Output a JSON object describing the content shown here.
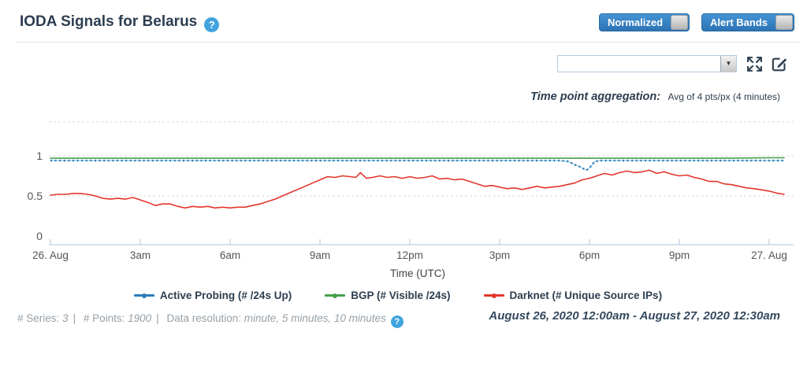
{
  "header": {
    "title": "IODA Signals for Belarus",
    "help_icon": "?",
    "toggles": [
      {
        "label": "Normalized",
        "state": "on"
      },
      {
        "label": "Alert Bands",
        "state": "on"
      }
    ],
    "accent_blue": "#3584c4"
  },
  "controls": {
    "series_dropdown_value": "",
    "aggregation_label": "Time point aggregation:",
    "aggregation_value": "Avg of 4 pts/px (4 minutes)"
  },
  "chart_data": {
    "type": "line",
    "xlabel": "Time (UTC)",
    "x_unit": "hours since 2020-08-26 00:00am UTC",
    "x_range": [
      0,
      24.5
    ],
    "ylim": [
      0,
      1.45
    ],
    "yticks": [
      0,
      0.5,
      1
    ],
    "grid": "horizontal dashed",
    "legend_position": "bottom center",
    "xticks": [
      {
        "hour": 0,
        "label": "26. Aug"
      },
      {
        "hour": 3,
        "label": "3am"
      },
      {
        "hour": 6,
        "label": "6am"
      },
      {
        "hour": 9,
        "label": "9am"
      },
      {
        "hour": 12,
        "label": "12pm"
      },
      {
        "hour": 15,
        "label": "3pm"
      },
      {
        "hour": 18,
        "label": "6pm"
      },
      {
        "hour": 21,
        "label": "9pm"
      },
      {
        "hour": 24,
        "label": "27. Aug"
      }
    ],
    "series": [
      {
        "name": "Active Probing (# /24s Up)",
        "color": "#2e7cb8",
        "style": "dashed-dotted",
        "points": [
          [
            0,
            0.94
          ],
          [
            1,
            0.94
          ],
          [
            2,
            0.94
          ],
          [
            3,
            0.94
          ],
          [
            4,
            0.94
          ],
          [
            5,
            0.94
          ],
          [
            6,
            0.94
          ],
          [
            7,
            0.94
          ],
          [
            8,
            0.94
          ],
          [
            9,
            0.94
          ],
          [
            10,
            0.94
          ],
          [
            11,
            0.94
          ],
          [
            12,
            0.94
          ],
          [
            13,
            0.94
          ],
          [
            14,
            0.94
          ],
          [
            15,
            0.94
          ],
          [
            16,
            0.94
          ],
          [
            17,
            0.94
          ],
          [
            17.3,
            0.93
          ],
          [
            17.5,
            0.89
          ],
          [
            17.7,
            0.86
          ],
          [
            17.9,
            0.82
          ],
          [
            18.05,
            0.87
          ],
          [
            18.15,
            0.92
          ],
          [
            18.3,
            0.94
          ],
          [
            19,
            0.94
          ],
          [
            20,
            0.94
          ],
          [
            21,
            0.94
          ],
          [
            22,
            0.94
          ],
          [
            23,
            0.94
          ],
          [
            24,
            0.94
          ],
          [
            24.5,
            0.94
          ]
        ]
      },
      {
        "name": "BGP (# Visible /24s)",
        "color": "#45a049",
        "style": "solid",
        "points": [
          [
            0,
            0.97
          ],
          [
            2,
            0.97
          ],
          [
            4,
            0.97
          ],
          [
            6,
            0.97
          ],
          [
            8,
            0.97
          ],
          [
            10,
            0.97
          ],
          [
            12,
            0.97
          ],
          [
            14,
            0.97
          ],
          [
            16,
            0.97
          ],
          [
            18,
            0.97
          ],
          [
            20,
            0.97
          ],
          [
            22,
            0.97
          ],
          [
            23,
            0.972
          ],
          [
            24,
            0.975
          ],
          [
            24.5,
            0.975
          ]
        ]
      },
      {
        "name": "Darknet (# Unique Source IPs)",
        "color": "#e3362c",
        "style": "solid",
        "points": [
          [
            0,
            0.51
          ],
          [
            0.25,
            0.52
          ],
          [
            0.5,
            0.52
          ],
          [
            0.75,
            0.53
          ],
          [
            1,
            0.53
          ],
          [
            1.25,
            0.52
          ],
          [
            1.5,
            0.5
          ],
          [
            1.75,
            0.47
          ],
          [
            2,
            0.46
          ],
          [
            2.25,
            0.47
          ],
          [
            2.5,
            0.46
          ],
          [
            2.75,
            0.48
          ],
          [
            3,
            0.45
          ],
          [
            3.25,
            0.42
          ],
          [
            3.5,
            0.38
          ],
          [
            3.75,
            0.4
          ],
          [
            4,
            0.4
          ],
          [
            4.25,
            0.37
          ],
          [
            4.5,
            0.35
          ],
          [
            4.75,
            0.37
          ],
          [
            5,
            0.36
          ],
          [
            5.25,
            0.37
          ],
          [
            5.5,
            0.35
          ],
          [
            5.75,
            0.36
          ],
          [
            6,
            0.35
          ],
          [
            6.25,
            0.36
          ],
          [
            6.5,
            0.36
          ],
          [
            6.75,
            0.38
          ],
          [
            7,
            0.4
          ],
          [
            7.25,
            0.43
          ],
          [
            7.5,
            0.46
          ],
          [
            7.75,
            0.5
          ],
          [
            8,
            0.54
          ],
          [
            8.25,
            0.58
          ],
          [
            8.5,
            0.62
          ],
          [
            8.75,
            0.66
          ],
          [
            9,
            0.7
          ],
          [
            9.25,
            0.74
          ],
          [
            9.5,
            0.73
          ],
          [
            9.75,
            0.75
          ],
          [
            10,
            0.74
          ],
          [
            10.2,
            0.73
          ],
          [
            10.35,
            0.79
          ],
          [
            10.55,
            0.72
          ],
          [
            10.75,
            0.73
          ],
          [
            11,
            0.75
          ],
          [
            11.25,
            0.73
          ],
          [
            11.5,
            0.74
          ],
          [
            11.75,
            0.72
          ],
          [
            12,
            0.74
          ],
          [
            12.25,
            0.72
          ],
          [
            12.5,
            0.73
          ],
          [
            12.75,
            0.75
          ],
          [
            13,
            0.71
          ],
          [
            13.25,
            0.72
          ],
          [
            13.5,
            0.7
          ],
          [
            13.75,
            0.71
          ],
          [
            14,
            0.68
          ],
          [
            14.25,
            0.65
          ],
          [
            14.5,
            0.62
          ],
          [
            14.75,
            0.63
          ],
          [
            15,
            0.61
          ],
          [
            15.25,
            0.59
          ],
          [
            15.5,
            0.6
          ],
          [
            15.75,
            0.58
          ],
          [
            16,
            0.6
          ],
          [
            16.25,
            0.62
          ],
          [
            16.5,
            0.6
          ],
          [
            16.75,
            0.61
          ],
          [
            17,
            0.62
          ],
          [
            17.25,
            0.64
          ],
          [
            17.5,
            0.66
          ],
          [
            17.75,
            0.7
          ],
          [
            18,
            0.72
          ],
          [
            18.25,
            0.75
          ],
          [
            18.5,
            0.78
          ],
          [
            18.75,
            0.76
          ],
          [
            19,
            0.79
          ],
          [
            19.25,
            0.81
          ],
          [
            19.5,
            0.79
          ],
          [
            19.75,
            0.8
          ],
          [
            20,
            0.82
          ],
          [
            20.25,
            0.78
          ],
          [
            20.5,
            0.8
          ],
          [
            20.75,
            0.77
          ],
          [
            21,
            0.75
          ],
          [
            21.25,
            0.76
          ],
          [
            21.5,
            0.73
          ],
          [
            21.75,
            0.71
          ],
          [
            22,
            0.68
          ],
          [
            22.25,
            0.68
          ],
          [
            22.5,
            0.65
          ],
          [
            22.75,
            0.64
          ],
          [
            23,
            0.62
          ],
          [
            23.25,
            0.6
          ],
          [
            23.5,
            0.59
          ],
          [
            23.75,
            0.575
          ],
          [
            24,
            0.56
          ],
          [
            24.25,
            0.535
          ],
          [
            24.5,
            0.52
          ]
        ]
      }
    ]
  },
  "legend": {
    "items": [
      {
        "label": "Active Probing (# /24s Up)",
        "color": "#2e7cb8"
      },
      {
        "label": "BGP (# Visible /24s)",
        "color": "#45a049"
      },
      {
        "label": "Darknet (# Unique Source IPs)",
        "color": "#e3362c"
      }
    ]
  },
  "footer": {
    "series_label": "# Series:",
    "series_value": "3",
    "points_label": "# Points:",
    "points_value": "1900",
    "resolution_label": "Data resolution:",
    "resolution_value": "minute, 5 minutes, 10 minutes",
    "help_icon": "?",
    "date_range": "August 26, 2020 12:00am - August 27, 2020 12:30am"
  }
}
